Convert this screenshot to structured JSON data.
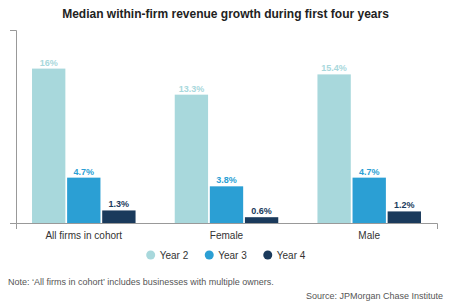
{
  "chart_data": {
    "type": "bar",
    "title": "Median within-firm revenue growth during first four years",
    "categories": [
      "All firms in cohort",
      "Female",
      "Male"
    ],
    "series": [
      {
        "name": "Year 2",
        "color": "#a8d8dc",
        "values": [
          16.0,
          13.3,
          15.4
        ],
        "value_labels": [
          "16%",
          "13.3%",
          "15.4%"
        ]
      },
      {
        "name": "Year 3",
        "color": "#2b9fd4",
        "values": [
          4.7,
          3.8,
          4.7
        ],
        "value_labels": [
          "4.7%",
          "3.8%",
          "4.7%"
        ]
      },
      {
        "name": "Year 4",
        "color": "#1a3a5c",
        "values": [
          1.3,
          0.6,
          1.2
        ],
        "value_labels": [
          "1.3%",
          "0.6%",
          "1.2%"
        ]
      }
    ],
    "ylim": [
      0,
      20
    ],
    "data_labels": true,
    "tick_labels": "x",
    "legend": "bottom",
    "annotations": [
      "Note: ‘All firms in cohort’ includes businesses with multiple owners.",
      "Source: JPMorgan Chase Institute"
    ]
  }
}
